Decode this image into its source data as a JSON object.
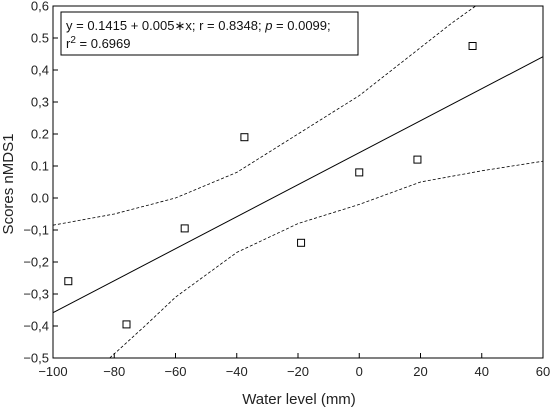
{
  "chart_data": {
    "type": "scatter",
    "xlabel": "Water level (mm)",
    "ylabel": "Scores nMDS1",
    "xlim": [
      -100,
      60
    ],
    "ylim": [
      -0.5,
      0.6
    ],
    "x_ticks": [
      -100,
      -80,
      -60,
      -40,
      -20,
      0,
      20,
      40,
      60
    ],
    "x_tick_labels": [
      "−100",
      "−80",
      "−60",
      "−40",
      "−20",
      "0",
      "20",
      "40",
      "60"
    ],
    "y_ticks": [
      -0.5,
      -0.4,
      -0.3,
      -0.2,
      -0.1,
      0.0,
      0.1,
      0.2,
      0.3,
      0.4,
      0.5,
      0.6
    ],
    "y_tick_labels": [
      "−0,5",
      "−0,4",
      "−0,3",
      "−0,2",
      "−0,1",
      "0.0",
      "0.1",
      "0.2",
      "0,3",
      "0,4",
      "0.5",
      "0,6"
    ],
    "grid": false,
    "points": [
      {
        "x": -95,
        "y": -0.26
      },
      {
        "x": -76,
        "y": -0.395
      },
      {
        "x": -57,
        "y": -0.095
      },
      {
        "x": -37.5,
        "y": 0.19
      },
      {
        "x": -19,
        "y": -0.14
      },
      {
        "x": 0,
        "y": 0.08
      },
      {
        "x": 19,
        "y": 0.12
      },
      {
        "x": 37,
        "y": 0.475
      }
    ],
    "fit": {
      "intercept": 0.1415,
      "slope": 0.005
    },
    "confidence_band": {
      "upper": [
        {
          "x": -100,
          "y": -0.085
        },
        {
          "x": -80,
          "y": -0.05
        },
        {
          "x": -60,
          "y": 0.0
        },
        {
          "x": -40,
          "y": 0.08
        },
        {
          "x": -20,
          "y": 0.2
        },
        {
          "x": 0,
          "y": 0.32
        },
        {
          "x": 20,
          "y": 0.47
        },
        {
          "x": 30,
          "y": 0.545
        },
        {
          "x": 38,
          "y": 0.6
        }
      ],
      "lower": [
        {
          "x": -81.5,
          "y": -0.5
        },
        {
          "x": -70,
          "y": -0.4
        },
        {
          "x": -60,
          "y": -0.31
        },
        {
          "x": -40,
          "y": -0.17
        },
        {
          "x": -20,
          "y": -0.08
        },
        {
          "x": 0,
          "y": -0.02
        },
        {
          "x": 20,
          "y": 0.05
        },
        {
          "x": 40,
          "y": 0.085
        },
        {
          "x": 60,
          "y": 0.115
        }
      ]
    },
    "annotation": {
      "line1_a": "y = 0.1415 + 0.005",
      "line1_op": "∗",
      "line1_b": "x;  r = 0.8348; ",
      "line1_p": "p",
      "line1_c": " = 0.0099;",
      "line2_a": "r",
      "line2_sup": "2",
      "line2_b": " = 0.6969"
    }
  }
}
